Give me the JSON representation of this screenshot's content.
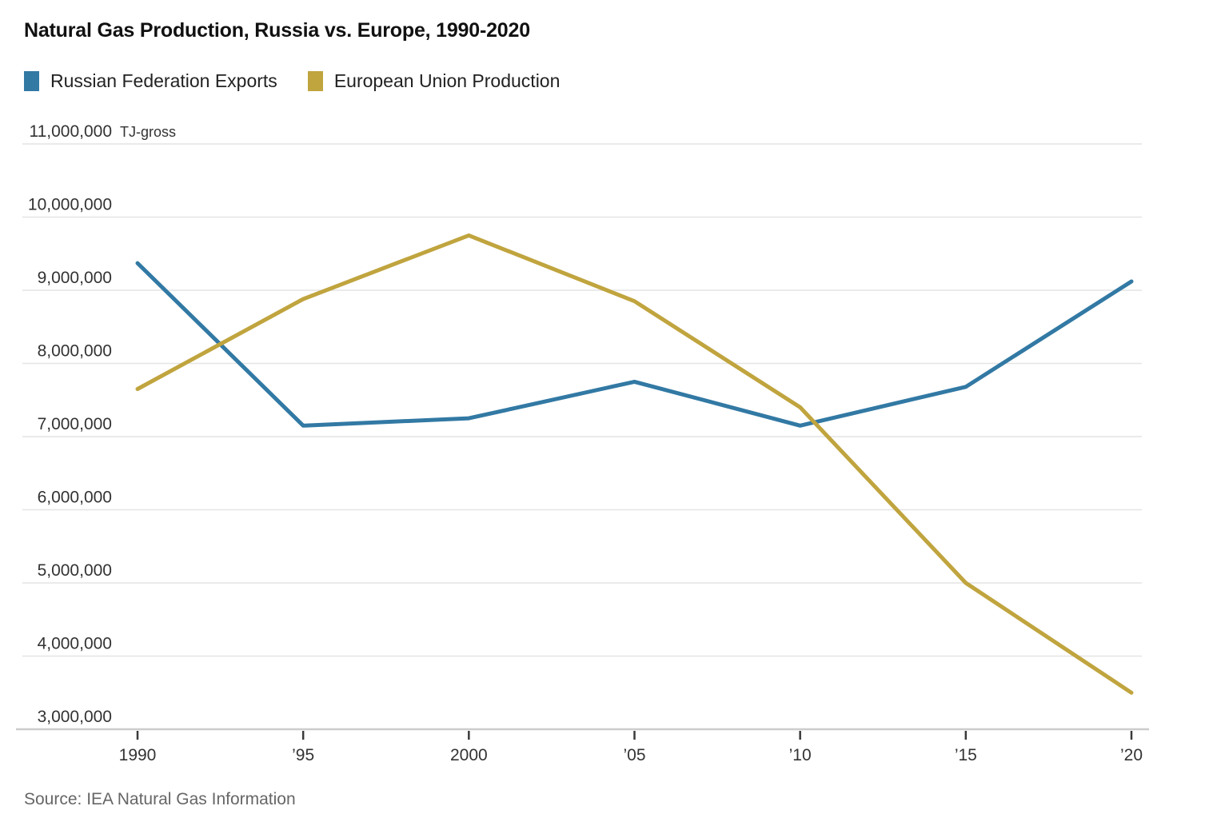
{
  "title": "Natural Gas Production, Russia vs. Europe, 1990-2020",
  "source": "Source: IEA Natural Gas Information",
  "unit_label": "TJ-gross",
  "legend": {
    "items": [
      {
        "label": "Russian Federation Exports",
        "color": "#3279a4"
      },
      {
        "label": "European Union Production",
        "color": "#c0a43e"
      }
    ]
  },
  "chart_data": {
    "type": "line",
    "title": "Natural Gas Production, Russia vs. Europe, 1990-2020",
    "xlabel": "",
    "ylabel": "TJ-gross",
    "x": [
      1990,
      1995,
      2000,
      2005,
      2010,
      2015,
      2020
    ],
    "x_tick_labels": [
      "1990",
      "’95",
      "2000",
      "’05",
      "’10",
      "’15",
      "’20"
    ],
    "xlim": [
      1990,
      2020
    ],
    "ylim": [
      3000000,
      11000000
    ],
    "y_ticks": [
      3000000,
      4000000,
      5000000,
      6000000,
      7000000,
      8000000,
      9000000,
      10000000,
      11000000
    ],
    "y_tick_labels": [
      "3,000,000",
      "4,000,000",
      "5,000,000",
      "6,000,000",
      "7,000,000",
      "8,000,000",
      "9,000,000",
      "10,000,000",
      "11,000,000"
    ],
    "grid": true,
    "legend_position": "top-left",
    "series": [
      {
        "name": "Russian Federation Exports",
        "color": "#3279a4",
        "values": [
          9370000,
          7150000,
          7250000,
          7750000,
          7150000,
          7680000,
          9120000
        ]
      },
      {
        "name": "European Union Production",
        "color": "#c0a43e",
        "values": [
          7650000,
          8880000,
          9750000,
          8850000,
          7400000,
          5000000,
          3500000
        ]
      }
    ]
  },
  "colors": {
    "grid": "#e4e4e4",
    "axis_line": "#cccccc",
    "tick_mark": "#3a3a3a",
    "axis_text": "#333333",
    "title_text": "#111111",
    "source_text": "#666666"
  }
}
